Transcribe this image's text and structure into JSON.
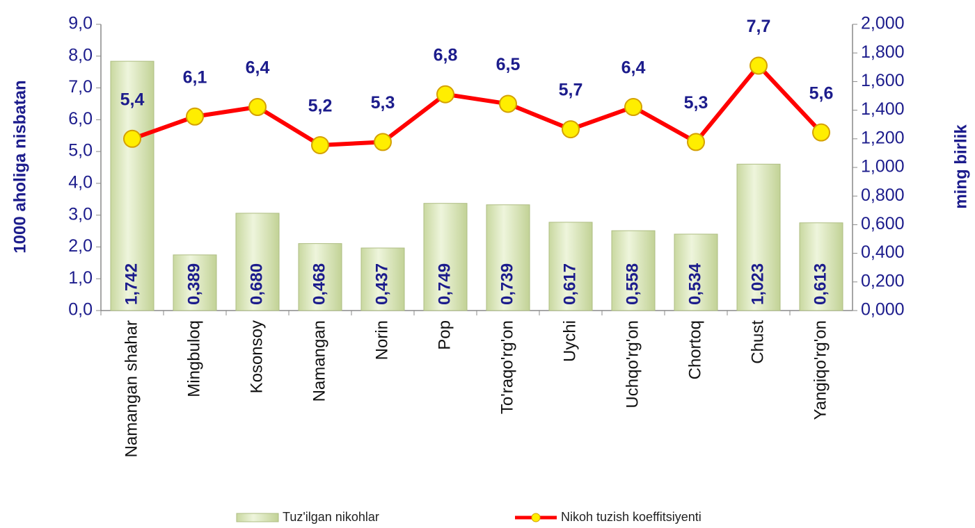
{
  "chart_data": {
    "type": "bar",
    "categories": [
      "Namangan shahar",
      "Mingbuloq",
      "Kosonsoy",
      "Namangan",
      "Norin",
      "Pop",
      "To'raqo'rg'on",
      "Uychi",
      "Uchqo'rg'on",
      "Chortoq",
      "Chust",
      "Yangiqo'rg'on"
    ],
    "series": [
      {
        "name": "Tuz'ilgan nikohlar",
        "type": "bar",
        "axis": "y2",
        "color": "#e4eec6",
        "values": [
          1.742,
          0.389,
          0.68,
          0.468,
          0.437,
          0.749,
          0.739,
          0.617,
          0.558,
          0.534,
          1.023,
          0.613
        ],
        "value_labels": [
          "1,742",
          "0,389",
          "0,680",
          "0,468",
          "0,437",
          "0,749",
          "0,739",
          "0,617",
          "0,558",
          "0,534",
          "1,023",
          "0,613"
        ]
      },
      {
        "name": "Nikoh tuzish koeffitsiyenti",
        "type": "line",
        "axis": "y",
        "color": "#ff0000",
        "values": [
          5.4,
          6.1,
          6.4,
          5.2,
          5.3,
          6.8,
          6.5,
          5.7,
          6.4,
          5.3,
          7.7,
          5.6
        ],
        "value_labels": [
          "5,4",
          "6,1",
          "6,4",
          "5,2",
          "5,3",
          "6,8",
          "6,5",
          "5,7",
          "6,4",
          "5,3",
          "7,7",
          "5,6"
        ]
      }
    ],
    "y_label": "1000 aholiga nisbatan",
    "y2_label": "ming birlik",
    "ylim": [
      0,
      9
    ],
    "yticks": [
      {
        "value": 0,
        "label": "0,0"
      },
      {
        "value": 1,
        "label": "1,0"
      },
      {
        "value": 2,
        "label": "2,0"
      },
      {
        "value": 3,
        "label": "3,0"
      },
      {
        "value": 4,
        "label": "4,0"
      },
      {
        "value": 5,
        "label": "5,0"
      },
      {
        "value": 6,
        "label": "6,0"
      },
      {
        "value": 7,
        "label": "7,0"
      },
      {
        "value": 8,
        "label": "8,0"
      },
      {
        "value": 9,
        "label": "9,0"
      }
    ],
    "y2lim": [
      0,
      2
    ],
    "y2ticks": [
      {
        "value": 0,
        "label": "0,000"
      },
      {
        "value": 0.2,
        "label": "0,200"
      },
      {
        "value": 0.4,
        "label": "0,400"
      },
      {
        "value": 0.6,
        "label": "0,600"
      },
      {
        "value": 0.8,
        "label": "0,800"
      },
      {
        "value": 1,
        "label": "1,000"
      },
      {
        "value": 1.2,
        "label": "1,200"
      },
      {
        "value": 1.4,
        "label": "1,400"
      },
      {
        "value": 1.6,
        "label": "1,600"
      },
      {
        "value": 1.8,
        "label": "1,800"
      },
      {
        "value": 2,
        "label": "2,000"
      }
    ],
    "grid": false,
    "legend": "bottom"
  }
}
